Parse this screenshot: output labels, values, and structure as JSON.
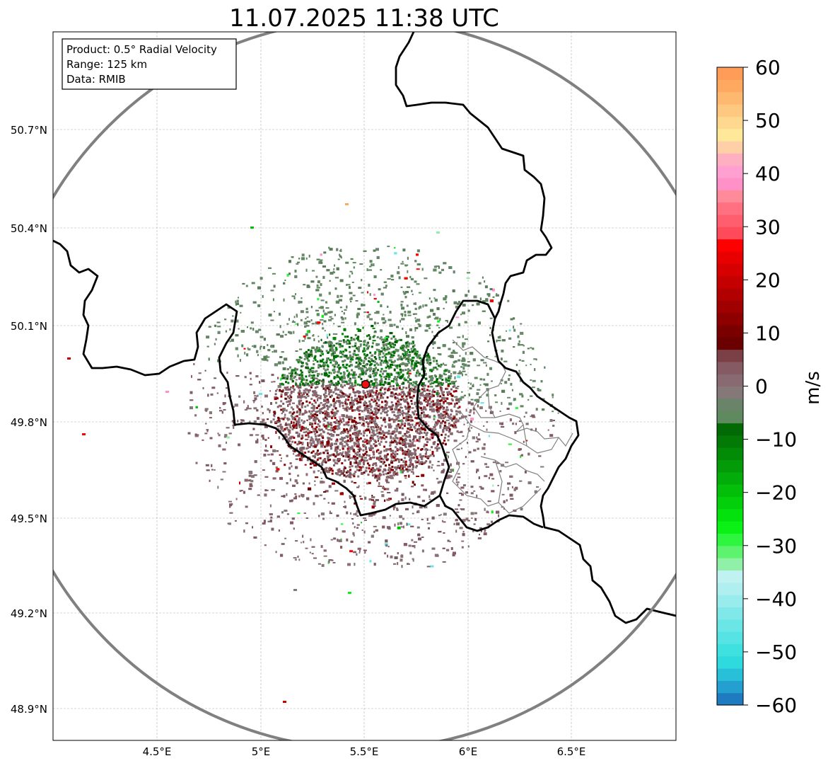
{
  "title": "11.07.2025 11:38 UTC",
  "info_box": {
    "product": "Product: 0.5° Radial Velocity",
    "range": "Range: 125 km",
    "source": "Data: RMIB"
  },
  "map": {
    "lat_ticks": [
      "50.7°N",
      "50.4°N",
      "50.1°N",
      "49.8°N",
      "49.5°N",
      "49.2°N",
      "48.9°N"
    ],
    "lon_ticks": [
      "4.5°E",
      "5°E",
      "5.5°E",
      "6°E",
      "6.5°E"
    ],
    "radar_site": {
      "lon": 5.505,
      "lat": 49.915
    },
    "range_ring_color": "#808080",
    "border_color": "#000000",
    "admin_border_color": "#808080"
  },
  "colorbar": {
    "label": "m/s",
    "min": -60,
    "max": 60,
    "ticks": [
      "60",
      "50",
      "40",
      "30",
      "20",
      "10",
      "0",
      "−10",
      "−20",
      "−30",
      "−40",
      "−50",
      "−60"
    ],
    "colors": [
      "#1f7bbf",
      "#239fd0",
      "#28bfd8",
      "#2fdadf",
      "#3fe0e0",
      "#55e3e3",
      "#6ae6e6",
      "#80e8e8",
      "#98ecec",
      "#b0efef",
      "#c0f2f2",
      "#90f0a8",
      "#5ef36e",
      "#2ef63e",
      "#0af215",
      "#04e20e",
      "#03cf0b",
      "#04bf0a",
      "#03ad09",
      "#039c08",
      "#028b06",
      "#027a05",
      "#026a04",
      "#5f8a5f",
      "#6a846a",
      "#857878",
      "#8a6a72",
      "#865a62",
      "#7a4045",
      "#6a0000",
      "#7a0000",
      "#8e0000",
      "#a00000",
      "#b20000",
      "#c40000",
      "#d60000",
      "#e80000",
      "#ff0000",
      "#ff4a5a",
      "#ff5e6e",
      "#ff7080",
      "#ff8a9a",
      "#ff90c8",
      "#ffa0d0",
      "#ffb0c0",
      "#ffd0a8",
      "#ffe898",
      "#ffd890",
      "#ffc880",
      "#ffb870",
      "#ffa860",
      "#ff9c58"
    ]
  }
}
